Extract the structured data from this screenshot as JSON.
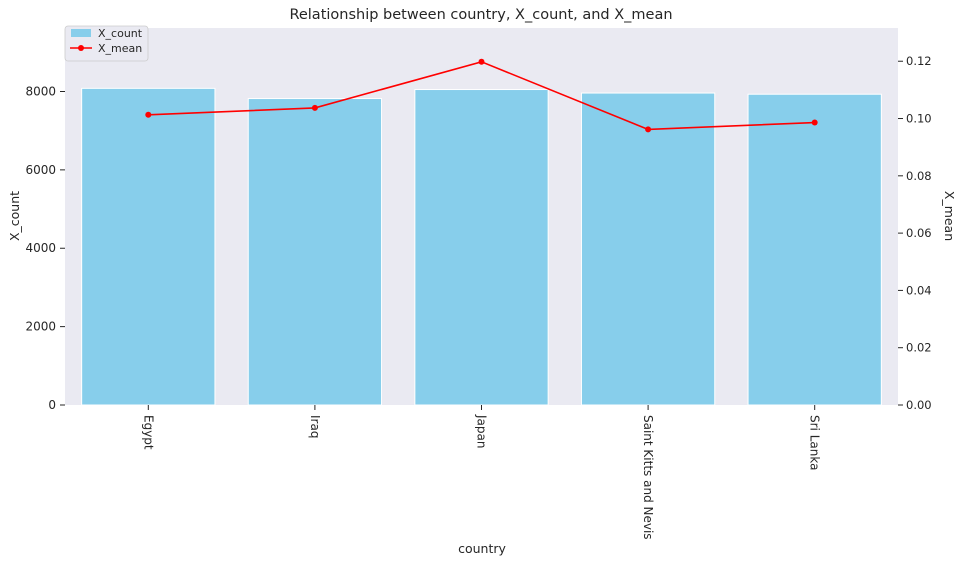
{
  "chart_data": {
    "type": "bar",
    "title": "Relationship between country, X_count, and X_mean",
    "xlabel": "country",
    "ylabel": "X_count",
    "y2label": "X_mean",
    "categories": [
      "Egypt",
      "Iraq",
      "Japan",
      "Saint Kitts and Nevis",
      "Sri Lanka"
    ],
    "series": [
      {
        "name": "X_count",
        "type": "bar",
        "axis": "left",
        "color": "#87ceeb",
        "values": [
          8080,
          7820,
          8050,
          7960,
          7930
        ]
      },
      {
        "name": "X_mean",
        "type": "line",
        "axis": "right",
        "color": "#ff0000",
        "marker": "circle",
        "values": [
          0.1013,
          0.1037,
          0.1198,
          0.0962,
          0.0986
        ]
      }
    ],
    "ylim": [
      0,
      9620
    ],
    "yticks": [
      0,
      2000,
      4000,
      6000,
      8000
    ],
    "y2lim": [
      0,
      0.1316
    ],
    "y2ticks": [
      0.0,
      0.02,
      0.04,
      0.06,
      0.08,
      0.1,
      0.12
    ],
    "y2tick_labels": [
      "0.00",
      "0.02",
      "0.04",
      "0.06",
      "0.08",
      "0.10",
      "0.12"
    ],
    "grid": false,
    "legend_position": "top-left",
    "background": "#eaeaf2"
  }
}
